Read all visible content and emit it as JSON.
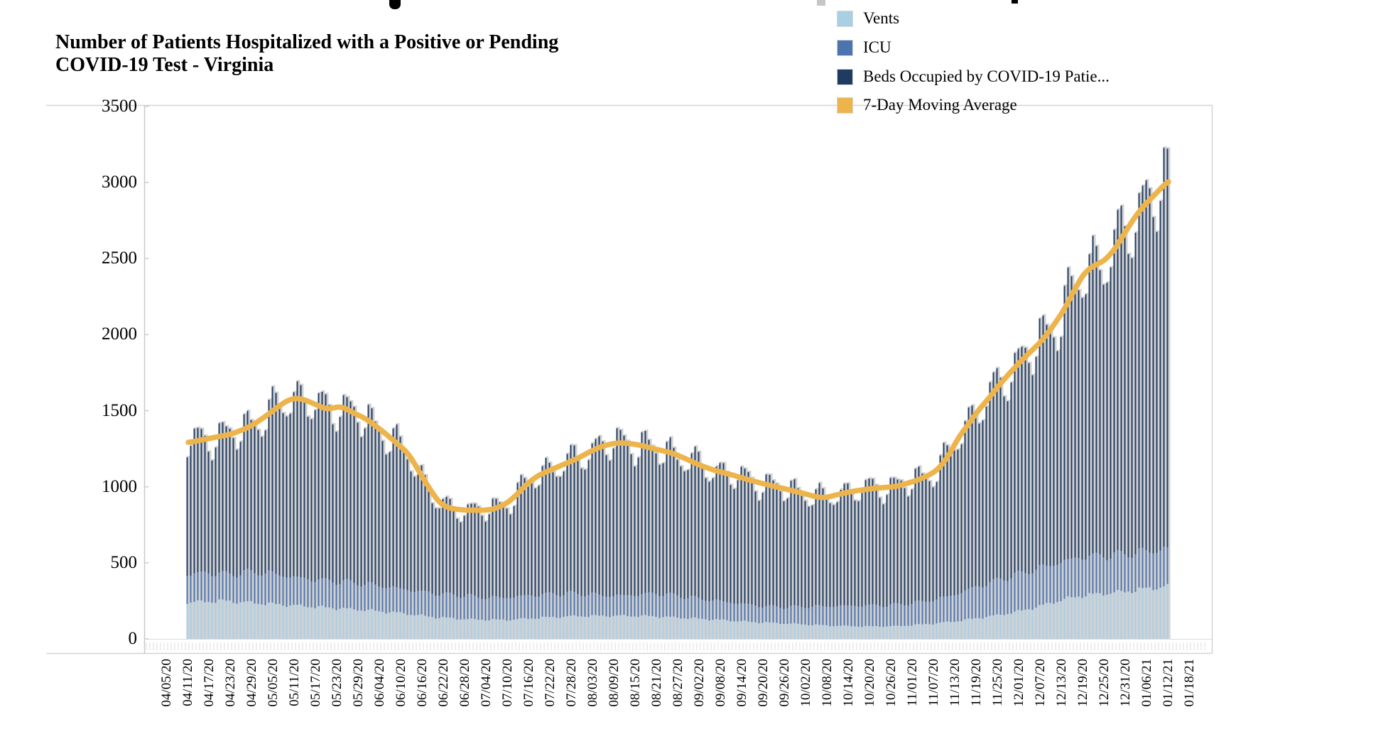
{
  "title": {
    "line1": "Number of Patients Hospitalized with a Positive or Pending",
    "line2": "COVID-19 Test - Virginia"
  },
  "legend": {
    "items": [
      {
        "label": "Vents",
        "color": "#A9CFE5"
      },
      {
        "label": "ICU",
        "color": "#4D74AE"
      },
      {
        "label": "Beds Occupied by COVID-19 Patie...",
        "color": "#203B61"
      },
      {
        "label": "7-Day Moving Average",
        "color": "#EDB44C"
      }
    ]
  },
  "chart_data": {
    "type": "stacked-bar+line",
    "title": "Number of Patients Hospitalized with a Positive or Pending COVID-19 Test - Virginia",
    "series": [
      {
        "name": "Vents",
        "type": "bar",
        "color": "#A9CFE5"
      },
      {
        "name": "ICU",
        "type": "bar",
        "color": "#4D74AE"
      },
      {
        "name": "Beds Occupied by COVID-19 Patients",
        "type": "bar",
        "color": "#203B61"
      },
      {
        "name": "7-Day Moving Average",
        "type": "line",
        "color": "#EDB44C"
      }
    ],
    "bar_background_color": "#D2D2D2",
    "ylim": [
      0,
      3500
    ],
    "y_axis": {
      "tick_step": 500,
      "tick_labels": [
        "0",
        "500",
        "1000",
        "1500",
        "2000",
        "2500",
        "3000",
        "3500"
      ]
    },
    "x_tick_labels": [
      "04/05/20",
      "04/11/20",
      "04/17/20",
      "04/23/20",
      "04/29/20",
      "05/05/20",
      "05/11/20",
      "05/17/20",
      "05/23/20",
      "05/29/20",
      "06/04/20",
      "06/10/20",
      "06/16/20",
      "06/22/20",
      "06/28/20",
      "07/04/20",
      "07/10/20",
      "07/16/20",
      "07/22/20",
      "07/28/20",
      "08/03/20",
      "08/09/20",
      "08/15/20",
      "08/21/20",
      "08/27/20",
      "09/02/20",
      "09/08/20",
      "09/14/20",
      "09/20/20",
      "09/26/20",
      "10/02/20",
      "10/08/20",
      "10/14/20",
      "10/20/20",
      "10/26/20",
      "11/01/20",
      "11/07/20",
      "11/13/20",
      "11/19/20",
      "11/25/20",
      "12/01/20",
      "12/07/20",
      "12/13/20",
      "12/19/20",
      "12/25/20",
      "12/31/20",
      "01/06/21",
      "01/12/21",
      "01/18/21"
    ],
    "bars_start_date": "04/11/20",
    "bars_end_date": "01/12/21",
    "n_bars": 277,
    "legend_position": "top-right",
    "grid": false,
    "avg7_keyframes": [
      [
        0,
        1290
      ],
      [
        6,
        1318
      ],
      [
        12,
        1345
      ],
      [
        17,
        1390
      ],
      [
        21,
        1450
      ],
      [
        25,
        1520
      ],
      [
        28,
        1570
      ],
      [
        31,
        1585
      ],
      [
        34,
        1560
      ],
      [
        39,
        1508
      ],
      [
        43,
        1530
      ],
      [
        47,
        1480
      ],
      [
        50,
        1448
      ],
      [
        55,
        1360
      ],
      [
        58,
        1300
      ],
      [
        62,
        1220
      ],
      [
        66,
        1060
      ],
      [
        69,
        950
      ],
      [
        71,
        885
      ],
      [
        74,
        856
      ],
      [
        78,
        846
      ],
      [
        82,
        845
      ],
      [
        85,
        848
      ],
      [
        87,
        862
      ],
      [
        89,
        882
      ],
      [
        91,
        915
      ],
      [
        93,
        960
      ],
      [
        95,
        1010
      ],
      [
        97,
        1050
      ],
      [
        99,
        1080
      ],
      [
        101,
        1100
      ],
      [
        104,
        1130
      ],
      [
        107,
        1160
      ],
      [
        110,
        1190
      ],
      [
        113,
        1230
      ],
      [
        116,
        1262
      ],
      [
        119,
        1282
      ],
      [
        122,
        1290
      ],
      [
        125,
        1282
      ],
      [
        128,
        1270
      ],
      [
        131,
        1250
      ],
      [
        134,
        1235
      ],
      [
        137,
        1215
      ],
      [
        140,
        1185
      ],
      [
        143,
        1152
      ],
      [
        146,
        1125
      ],
      [
        149,
        1102
      ],
      [
        152,
        1085
      ],
      [
        155,
        1065
      ],
      [
        158,
        1045
      ],
      [
        161,
        1025
      ],
      [
        164,
        1008
      ],
      [
        167,
        992
      ],
      [
        170,
        975
      ],
      [
        173,
        958
      ],
      [
        176,
        938
      ],
      [
        179,
        925
      ],
      [
        181,
        938
      ],
      [
        184,
        955
      ],
      [
        187,
        970
      ],
      [
        190,
        980
      ],
      [
        193,
        990
      ],
      [
        196,
        995
      ],
      [
        199,
        1000
      ],
      [
        202,
        1020
      ],
      [
        205,
        1040
      ],
      [
        208,
        1070
      ],
      [
        211,
        1110
      ],
      [
        214,
        1200
      ],
      [
        217,
        1330
      ],
      [
        220,
        1420
      ],
      [
        222,
        1490
      ],
      [
        225,
        1570
      ],
      [
        228,
        1660
      ],
      [
        231,
        1740
      ],
      [
        234,
        1815
      ],
      [
        237,
        1885
      ],
      [
        240,
        1950
      ],
      [
        243,
        2040
      ],
      [
        246,
        2140
      ],
      [
        249,
        2270
      ],
      [
        252,
        2400
      ],
      [
        255,
        2455
      ],
      [
        258,
        2485
      ],
      [
        261,
        2565
      ],
      [
        264,
        2680
      ],
      [
        267,
        2790
      ],
      [
        270,
        2870
      ],
      [
        273,
        2940
      ],
      [
        276,
        3015
      ]
    ],
    "vents_keyframes": [
      [
        0,
        240
      ],
      [
        10,
        250
      ],
      [
        20,
        235
      ],
      [
        30,
        220
      ],
      [
        40,
        205
      ],
      [
        50,
        190
      ],
      [
        60,
        170
      ],
      [
        70,
        142
      ],
      [
        80,
        128
      ],
      [
        90,
        125
      ],
      [
        100,
        140
      ],
      [
        110,
        150
      ],
      [
        120,
        152
      ],
      [
        130,
        150
      ],
      [
        140,
        138
      ],
      [
        150,
        125
      ],
      [
        160,
        110
      ],
      [
        170,
        100
      ],
      [
        180,
        88
      ],
      [
        190,
        82
      ],
      [
        200,
        84
      ],
      [
        210,
        100
      ],
      [
        217,
        118
      ],
      [
        222,
        135
      ],
      [
        228,
        155
      ],
      [
        234,
        180
      ],
      [
        240,
        215
      ],
      [
        246,
        255
      ],
      [
        252,
        285
      ],
      [
        258,
        298
      ],
      [
        264,
        310
      ],
      [
        270,
        330
      ],
      [
        276,
        345
      ]
    ],
    "icu_top_keyframes": [
      [
        0,
        425
      ],
      [
        6,
        435
      ],
      [
        12,
        425
      ],
      [
        18,
        440
      ],
      [
        24,
        430
      ],
      [
        30,
        405
      ],
      [
        36,
        390
      ],
      [
        42,
        378
      ],
      [
        48,
        368
      ],
      [
        54,
        350
      ],
      [
        60,
        330
      ],
      [
        66,
        310
      ],
      [
        72,
        295
      ],
      [
        78,
        285
      ],
      [
        84,
        272
      ],
      [
        90,
        272
      ],
      [
        96,
        285
      ],
      [
        102,
        295
      ],
      [
        108,
        300
      ],
      [
        114,
        292
      ],
      [
        120,
        282
      ],
      [
        126,
        290
      ],
      [
        132,
        300
      ],
      [
        138,
        285
      ],
      [
        144,
        265
      ],
      [
        150,
        248
      ],
      [
        156,
        232
      ],
      [
        162,
        215
      ],
      [
        168,
        210
      ],
      [
        174,
        212
      ],
      [
        180,
        215
      ],
      [
        186,
        218
      ],
      [
        192,
        220
      ],
      [
        198,
        222
      ],
      [
        204,
        235
      ],
      [
        210,
        255
      ],
      [
        216,
        290
      ],
      [
        222,
        340
      ],
      [
        228,
        385
      ],
      [
        234,
        425
      ],
      [
        240,
        465
      ],
      [
        246,
        505
      ],
      [
        252,
        540
      ],
      [
        258,
        548
      ],
      [
        264,
        558
      ],
      [
        270,
        575
      ],
      [
        276,
        590
      ]
    ],
    "daily_variation": {
      "weekly_pattern": [
        0.055,
        0.075,
        0.05,
        0.005,
        -0.05,
        -0.085,
        -0.05
      ],
      "phase": 5,
      "jitter_amp1": 0.018,
      "jitter_amp2": 0.012
    }
  }
}
